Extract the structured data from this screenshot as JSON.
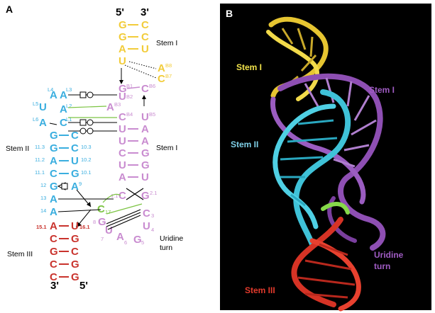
{
  "colors": {
    "stem1_outer": "#f2cc3a",
    "stem1_inner": "#c98cd0",
    "stem2": "#3aaedf",
    "stem3": "#c9332d",
    "connector": "#7cc443",
    "panelB_bg": "#000000",
    "stemI_label_yellow": "#f2e34b",
    "stemI_label_purple": "#a05cc4",
    "stemII_label": "#7fd0e8",
    "stemIII_label": "#e23a2c"
  },
  "panelA": {
    "label": "A",
    "end_top_left": "5'",
    "end_top_right": "3'",
    "end_bottom_left": "3'",
    "end_bottom_right": "5'",
    "labels": {
      "stem1_top": "Stem I",
      "stem1_mid": "Stem I",
      "stem2": "Stem II",
      "stem3": "Stem III",
      "uridine1": "Uridine",
      "uridine2": "turn"
    },
    "yellow_stem": [
      {
        "l": "G",
        "r": "C"
      },
      {
        "l": "G",
        "r": "C"
      },
      {
        "l": "A",
        "r": "U"
      },
      {
        "l": "U",
        "r": ""
      }
    ],
    "yellow_bulge": [
      {
        "nt": "A",
        "num": "B8"
      },
      {
        "nt": "C",
        "num": "B7"
      }
    ],
    "purple_top": [
      {
        "nt": "G",
        "num": "B1"
      },
      {
        "nt": "C",
        "num": "B6"
      },
      {
        "nt": "A",
        "num": "B3"
      },
      {
        "nt": "C",
        "num": "B4"
      },
      {
        "nt": "U",
        "num": "B5"
      },
      {
        "nt": "U",
        "num": "B2"
      }
    ],
    "purple_stem": [
      {
        "l": "U",
        "r": "A"
      },
      {
        "l": "U",
        "r": "A"
      },
      {
        "l": "C",
        "r": "G"
      },
      {
        "l": "U",
        "r": "G"
      },
      {
        "l": "A",
        "r": "U"
      }
    ],
    "purple_junction": {
      "l": "C",
      "r": "G",
      "lnum": "1.1",
      "rnum": "2.1"
    },
    "uridine_turn": [
      {
        "nt": "C",
        "num": "3"
      },
      {
        "nt": "U",
        "num": "4"
      },
      {
        "nt": "G",
        "num": "5"
      },
      {
        "nt": "A",
        "num": "6"
      },
      {
        "nt": "U",
        "num": "7"
      },
      {
        "nt": "G",
        "num": "8"
      }
    ],
    "green_nt": {
      "nt": "C",
      "num": "17"
    },
    "blue_loop": [
      {
        "nt": "A",
        "num": "L4"
      },
      {
        "nt": "A",
        "num": "L3"
      },
      {
        "nt": "U",
        "num": "L5"
      },
      {
        "nt": "A",
        "num": "L2"
      },
      {
        "nt": "A",
        "num": "L6"
      },
      {
        "nt": "C",
        "num": "L1"
      }
    ],
    "blue_stem": [
      {
        "l": "G",
        "r": "C",
        "lnum": "",
        "rnum": ""
      },
      {
        "l": "G",
        "r": "C",
        "lnum": "11.3",
        "rnum": "10.3"
      },
      {
        "l": "A",
        "r": "U",
        "lnum": "11.2",
        "rnum": "10.2"
      },
      {
        "l": "C",
        "r": "G",
        "lnum": "11.1",
        "rnum": "10.1"
      }
    ],
    "blue_lower": [
      {
        "nt": "G",
        "num": "12"
      },
      {
        "nt": "A",
        "num": "9"
      },
      {
        "nt": "A",
        "num": "13"
      },
      {
        "nt": "A",
        "num": "14"
      }
    ],
    "red_stem": [
      {
        "l": "A",
        "r": "U",
        "lnum": "15.1",
        "rnum": "16.1"
      },
      {
        "l": "C",
        "r": "G"
      },
      {
        "l": "G",
        "r": "C"
      },
      {
        "l": "C",
        "r": "G"
      },
      {
        "l": "C",
        "r": "G"
      }
    ]
  },
  "panelB": {
    "label": "B",
    "labels": {
      "stem1_yellow": "Stem I",
      "stem1_purple": "Stem I",
      "stem2": "Stem II",
      "uridine1": "Uridine",
      "uridine2": "turn",
      "stem3": "Stem III"
    }
  }
}
